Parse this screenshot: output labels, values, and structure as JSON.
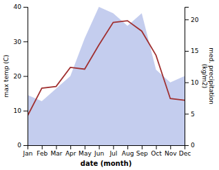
{
  "chart_data": {
    "type": "line",
    "xlabel": "date (month)",
    "ylabel": "max temp (C)",
    "y2label": "med. precipitation\n(kg/m2)",
    "categories": [
      "Jan",
      "Feb",
      "Mar",
      "Apr",
      "May",
      "Jun",
      "Jul",
      "Aug",
      "Sep",
      "Oct",
      "Nov",
      "Dec"
    ],
    "series": [
      {
        "type": "area",
        "axis": "y2",
        "color": "#b0bce8",
        "values": [
          8.0,
          7.0,
          9.0,
          11.0,
          17.0,
          22.0,
          21.0,
          19.0,
          21.0,
          12.0,
          10.0,
          11.0
        ]
      },
      {
        "type": "line",
        "color": "#a03030",
        "values": [
          8.5,
          16.5,
          17.0,
          22.5,
          22.0,
          29.0,
          35.5,
          36.0,
          33.0,
          26.0,
          13.5,
          13.0
        ]
      }
    ],
    "ylim": [
      0,
      40
    ],
    "yticks": [
      0,
      10,
      20,
      30,
      40
    ],
    "y2lim": [
      0,
      22
    ],
    "y2ticks": [
      0,
      5,
      10,
      15,
      20
    ],
    "grid": false
  }
}
